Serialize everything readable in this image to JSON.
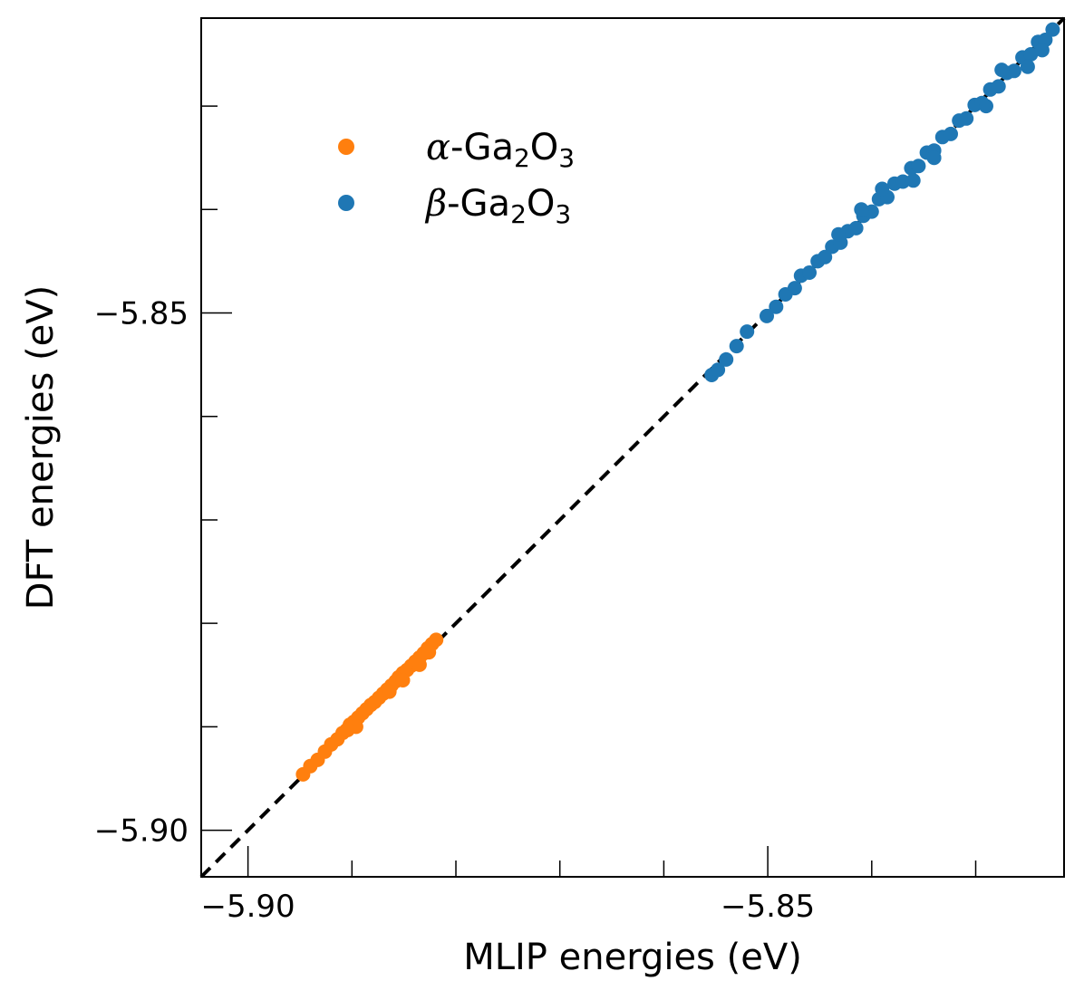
{
  "chart_data": {
    "type": "scatter",
    "title": "",
    "xlabel": "MLIP energies (eV)",
    "ylabel": "DFT energies (eV)",
    "xlim": [
      -5.9045,
      -5.8215
    ],
    "ylim": [
      -5.9045,
      -5.8215
    ],
    "x_ticks": [
      {
        "value": -5.9,
        "label": "−5.90"
      },
      {
        "value": -5.85,
        "label": "−5.85"
      }
    ],
    "y_ticks": [
      {
        "value": -5.9,
        "label": "−5.90"
      },
      {
        "value": -5.85,
        "label": "−5.85"
      }
    ],
    "x_minor_ticks": [
      -5.89,
      -5.88,
      -5.87,
      -5.86,
      -5.84,
      -5.83
    ],
    "y_minor_ticks": [
      -5.89,
      -5.88,
      -5.87,
      -5.86,
      -5.84,
      -5.83
    ],
    "grid": false,
    "legend_position": "upper-left",
    "reference_line": {
      "style": "dashed",
      "color": "#000000",
      "x": [
        -5.9045,
        -5.8215
      ],
      "y": [
        -5.9045,
        -5.8215
      ]
    },
    "series": [
      {
        "name": "α-Ga₂O₃",
        "legend_greek": "α",
        "legend_text": "-Ga",
        "legend_sub1": "2",
        "legend_mid": "O",
        "legend_sub2": "3",
        "color": "#ff7f0e",
        "points": [
          {
            "x": -5.8947,
            "y": -5.8946
          },
          {
            "x": -5.894,
            "y": -5.8938
          },
          {
            "x": -5.8933,
            "y": -5.8932
          },
          {
            "x": -5.8926,
            "y": -5.8924
          },
          {
            "x": -5.892,
            "y": -5.8917
          },
          {
            "x": -5.8914,
            "y": -5.8912
          },
          {
            "x": -5.8909,
            "y": -5.8906
          },
          {
            "x": -5.8905,
            "y": -5.8903
          },
          {
            "x": -5.8902,
            "y": -5.8898
          },
          {
            "x": -5.8898,
            "y": -5.8895
          },
          {
            "x": -5.8894,
            "y": -5.8891
          },
          {
            "x": -5.889,
            "y": -5.8887
          },
          {
            "x": -5.8886,
            "y": -5.8883
          },
          {
            "x": -5.8882,
            "y": -5.8879
          },
          {
            "x": -5.8878,
            "y": -5.8876
          },
          {
            "x": -5.8874,
            "y": -5.8872
          },
          {
            "x": -5.887,
            "y": -5.8868
          },
          {
            "x": -5.8866,
            "y": -5.8864
          },
          {
            "x": -5.8862,
            "y": -5.886
          },
          {
            "x": -5.8858,
            "y": -5.8856
          },
          {
            "x": -5.8855,
            "y": -5.8852
          },
          {
            "x": -5.8851,
            "y": -5.8848
          },
          {
            "x": -5.8847,
            "y": -5.8845
          },
          {
            "x": -5.8843,
            "y": -5.8841
          },
          {
            "x": -5.8839,
            "y": -5.8837
          },
          {
            "x": -5.8835,
            "y": -5.8833
          },
          {
            "x": -5.8831,
            "y": -5.8829
          },
          {
            "x": -5.8827,
            "y": -5.8824
          },
          {
            "x": -5.8823,
            "y": -5.882
          },
          {
            "x": -5.8819,
            "y": -5.8816
          },
          {
            "x": -5.8835,
            "y": -5.884
          },
          {
            "x": -5.8864,
            "y": -5.8866
          },
          {
            "x": -5.8896,
            "y": -5.89
          },
          {
            "x": -5.8904,
            "y": -5.8903
          },
          {
            "x": -5.8851,
            "y": -5.8855
          },
          {
            "x": -5.8826,
            "y": -5.8828
          }
        ]
      },
      {
        "name": "β-Ga₂O₃",
        "legend_greek": "β",
        "legend_text": "-Ga",
        "legend_sub1": "2",
        "legend_mid": "O",
        "legend_sub2": "3",
        "color": "#1f77b4",
        "points": [
          {
            "x": -5.8554,
            "y": -5.856
          },
          {
            "x": -5.8548,
            "y": -5.8555
          },
          {
            "x": -5.854,
            "y": -5.8545
          },
          {
            "x": -5.853,
            "y": -5.8532
          },
          {
            "x": -5.852,
            "y": -5.8518
          },
          {
            "x": -5.8501,
            "y": -5.8503
          },
          {
            "x": -5.8492,
            "y": -5.8494
          },
          {
            "x": -5.8483,
            "y": -5.8482
          },
          {
            "x": -5.8474,
            "y": -5.8476
          },
          {
            "x": -5.8468,
            "y": -5.8464
          },
          {
            "x": -5.846,
            "y": -5.8461
          },
          {
            "x": -5.8452,
            "y": -5.845
          },
          {
            "x": -5.8445,
            "y": -5.8446
          },
          {
            "x": -5.8438,
            "y": -5.8436
          },
          {
            "x": -5.843,
            "y": -5.8432
          },
          {
            "x": -5.8423,
            "y": -5.8421
          },
          {
            "x": -5.8415,
            "y": -5.8418
          },
          {
            "x": -5.8408,
            "y": -5.8406
          },
          {
            "x": -5.84,
            "y": -5.8402
          },
          {
            "x": -5.8393,
            "y": -5.839
          },
          {
            "x": -5.8385,
            "y": -5.8388
          },
          {
            "x": -5.8378,
            "y": -5.8375
          },
          {
            "x": -5.837,
            "y": -5.8373
          },
          {
            "x": -5.8362,
            "y": -5.836
          },
          {
            "x": -5.8355,
            "y": -5.8358
          },
          {
            "x": -5.8347,
            "y": -5.8345
          },
          {
            "x": -5.834,
            "y": -5.8343
          },
          {
            "x": -5.8332,
            "y": -5.833
          },
          {
            "x": -5.8324,
            "y": -5.8327
          },
          {
            "x": -5.8316,
            "y": -5.8314
          },
          {
            "x": -5.8309,
            "y": -5.8312
          },
          {
            "x": -5.8301,
            "y": -5.8299
          },
          {
            "x": -5.8294,
            "y": -5.8297
          },
          {
            "x": -5.8286,
            "y": -5.8284
          },
          {
            "x": -5.8278,
            "y": -5.8281
          },
          {
            "x": -5.827,
            "y": -5.8268
          },
          {
            "x": -5.8263,
            "y": -5.8266
          },
          {
            "x": -5.8255,
            "y": -5.8253
          },
          {
            "x": -5.8247,
            "y": -5.825
          },
          {
            "x": -5.824,
            "y": -5.8238
          },
          {
            "x": -5.8233,
            "y": -5.8236
          },
          {
            "x": -5.8226,
            "y": -5.8226
          },
          {
            "x": -5.829,
            "y": -5.83
          },
          {
            "x": -5.825,
            "y": -5.8262
          },
          {
            "x": -5.834,
            "y": -5.835
          },
          {
            "x": -5.839,
            "y": -5.838
          },
          {
            "x": -5.8432,
            "y": -5.8424
          },
          {
            "x": -5.8275,
            "y": -5.8265
          },
          {
            "x": -5.8236,
            "y": -5.8246
          },
          {
            "x": -5.836,
            "y": -5.8372
          },
          {
            "x": -5.841,
            "y": -5.84
          }
        ]
      }
    ]
  }
}
